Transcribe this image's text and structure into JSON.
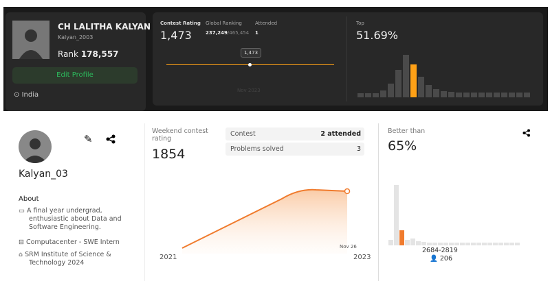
{
  "leetcode": {
    "profile": {
      "name": "CH LALITHA KALYAN",
      "username": "Kalyan_2003",
      "rank_label": "Rank",
      "rank": "178,557",
      "button": "Edit Profile",
      "location": "India"
    },
    "contest": {
      "rating_label": "Contest Rating",
      "rating": "1,473",
      "global_label": "Global Ranking",
      "global_rank": "237,249",
      "global_total": "/465,454",
      "attended_label": "Attended",
      "attended": "1",
      "tooltip": "1,473",
      "date": "Nov 2023"
    },
    "top": {
      "label": "Top",
      "value": "51.69%"
    }
  },
  "gfg": {
    "profile": {
      "username": "Kalyan_03",
      "about_title": "About",
      "about": "A final year undergrad, enthusiastic about Data and Software Engineering.",
      "job": "Computacenter - SWE Intern",
      "school": "SRM Institute of Science & Technology 2024"
    },
    "contest": {
      "rating_label": "Weekend contest rating",
      "rating": "1854",
      "contest_label": "Contest",
      "contest_value": "2 attended",
      "solved_label": "Problems solved",
      "solved_value": "3",
      "point_label": "Nov 26",
      "x_start": "2021",
      "x_end": "2023"
    },
    "better": {
      "label": "Better than",
      "value": "65%",
      "range": "2684-2819",
      "count": "206"
    }
  }
}
